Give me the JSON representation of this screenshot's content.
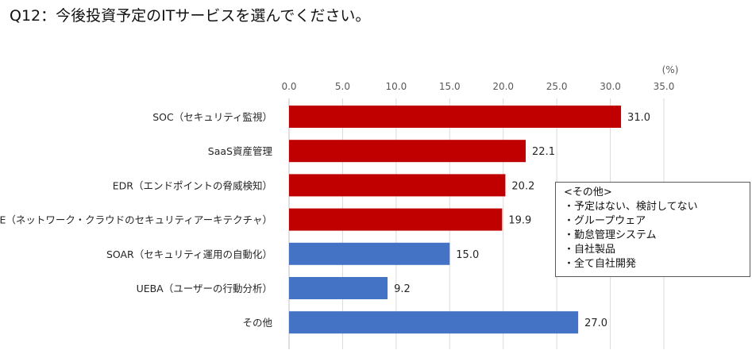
{
  "question": "Q12：今後投資予定のITサービスを選んでください。",
  "chart_data": {
    "type": "bar",
    "orientation": "horizontal",
    "unit_label": "(%)",
    "xlim": [
      0,
      35
    ],
    "ticks": [
      "0.0",
      "5.0",
      "10.0",
      "15.0",
      "20.0",
      "25.0",
      "30.0",
      "35.0"
    ],
    "grid": true,
    "categories": [
      "SOC（セキュリティ監視）",
      "SaaS資産管理",
      "EDR（エンドポイントの脅威検知）",
      "SASE（ネットワーク・クラウドのセキュリティアーキテクチャ）",
      "SOAR（セキュリティ運用の自動化）",
      "UEBA（ユーザーの行動分析）",
      "その他"
    ],
    "values": [
      31.0,
      22.1,
      20.2,
      19.9,
      15.0,
      9.2,
      27.0
    ],
    "value_labels": [
      "31.0",
      "22.1",
      "20.2",
      "19.9",
      "15.0",
      "9.2",
      "27.0"
    ],
    "bar_colors": [
      "#c00000",
      "#c00000",
      "#c00000",
      "#c00000",
      "#4472c4",
      "#4472c4",
      "#4472c4"
    ]
  },
  "note": {
    "title": "<その他>",
    "items": [
      "・予定はない、検討してない",
      "・グループウェア",
      "・勤怠管理システム",
      "・自社製品",
      "・全て自社開発"
    ]
  }
}
